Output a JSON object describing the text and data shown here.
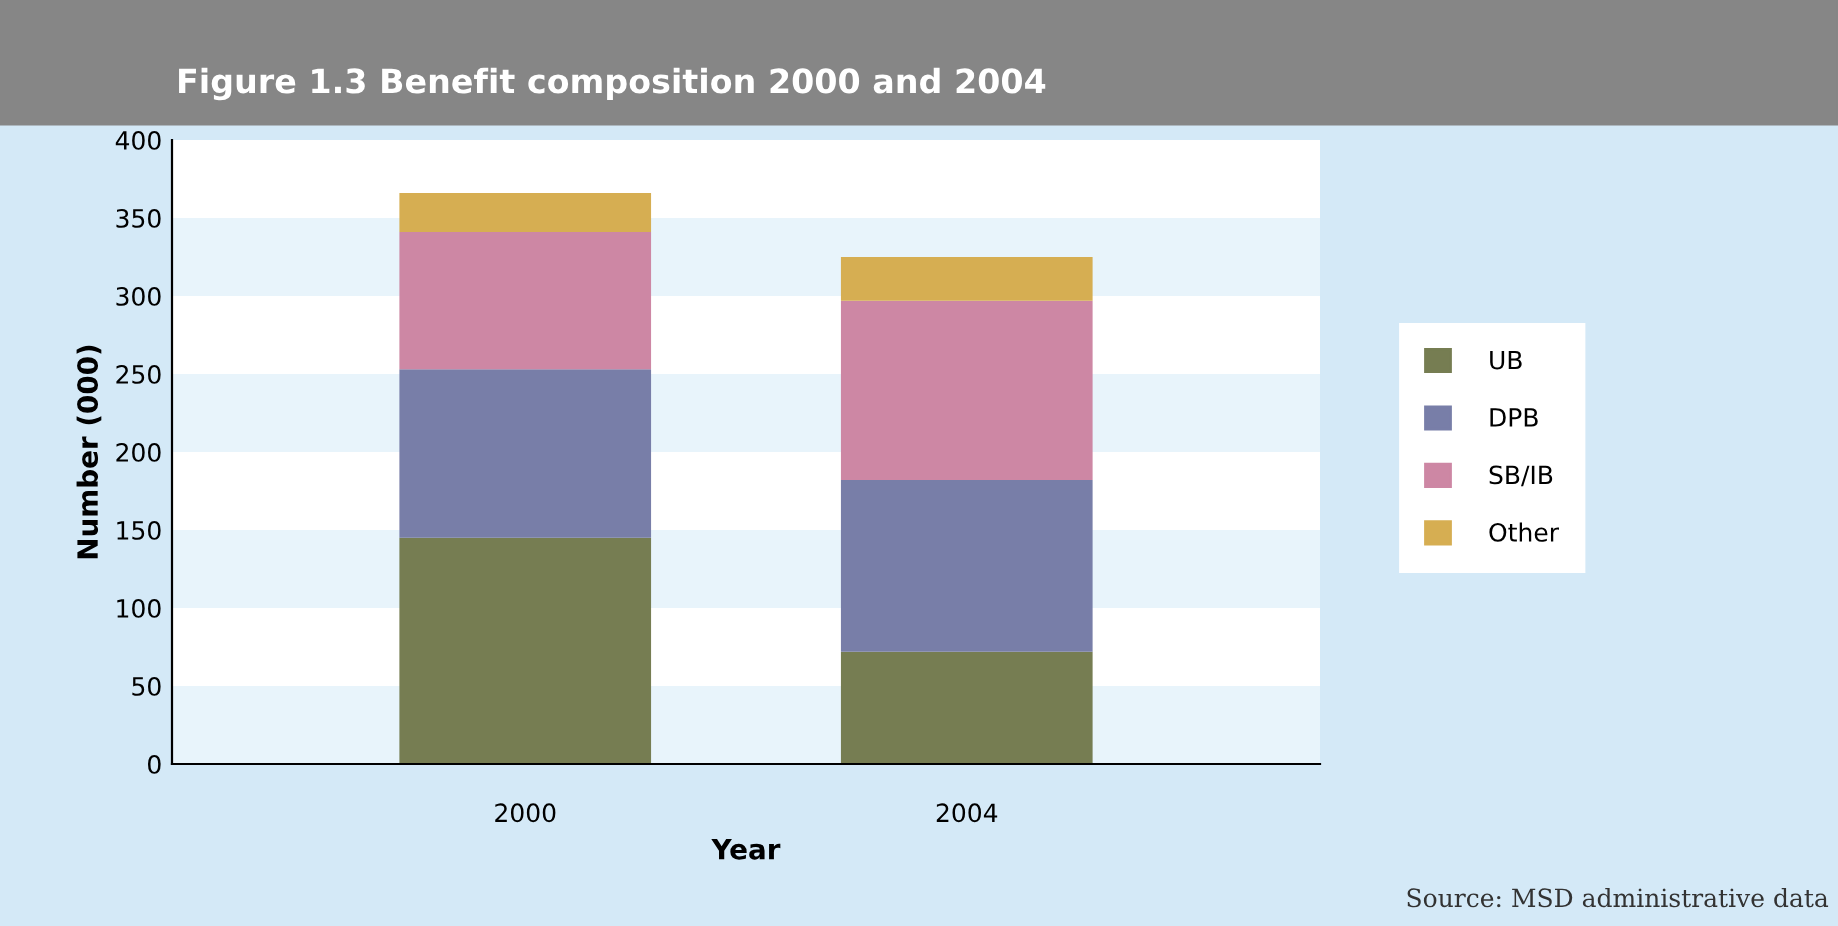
{
  "chart_data": {
    "type": "bar",
    "title": "Figure 1.3 Benefit composition 2000 and 2004",
    "xlabel": "Year",
    "ylabel": "Number (000)",
    "categories": [
      "2000",
      "2004"
    ],
    "stacked": true,
    "series": [
      {
        "name": "UB",
        "color": "#767d52",
        "values": [
          145,
          72
        ]
      },
      {
        "name": "DPB",
        "color": "#787ea8",
        "values": [
          108,
          110
        ]
      },
      {
        "name": "SB/IB",
        "color": "#cd87a4",
        "values": [
          88,
          115
        ]
      },
      {
        "name": "Other",
        "color": "#d6ae52",
        "values": [
          25,
          28
        ]
      }
    ],
    "ylim": [
      0,
      400
    ],
    "yticks": [
      0,
      50,
      100,
      150,
      200,
      250,
      300,
      350,
      400
    ],
    "legend": "right",
    "annotations": [
      "Source: MSD administrative data"
    ]
  }
}
